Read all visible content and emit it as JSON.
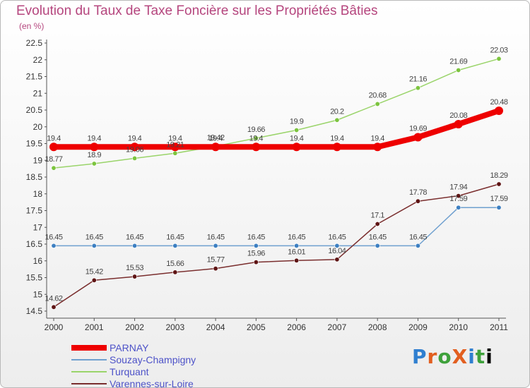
{
  "chart_data": {
    "type": "line",
    "title": "Evolution du Taux de Taxe Foncière sur les Propriétés Bâties",
    "ylabel": "(en %)",
    "xlabel": "",
    "x": [
      "2000",
      "2001",
      "2002",
      "2003",
      "2004",
      "2005",
      "2006",
      "2007",
      "2008",
      "2009",
      "2010",
      "2011"
    ],
    "ylim": [
      14.5,
      22.5
    ],
    "yticks": [
      "14.5",
      "15",
      "15.5",
      "16",
      "16.5",
      "17",
      "17.5",
      "18",
      "18.5",
      "19",
      "19.5",
      "20",
      "20.5",
      "21",
      "21.5",
      "22",
      "22.5"
    ],
    "grid": false,
    "legend_position": "bottom-left",
    "series": [
      {
        "name": "PARNAY",
        "color": "#ee0000",
        "values": [
          19.4,
          19.4,
          19.4,
          19.4,
          19.4,
          19.4,
          19.4,
          19.4,
          19.4,
          19.69,
          20.08,
          20.48
        ],
        "labels": [
          "19.4",
          "19.4",
          "19.4",
          "19.4",
          "19.4",
          "19.4",
          "19.4",
          "19.4",
          "19.4",
          "19.69",
          "20.08",
          "20.48"
        ]
      },
      {
        "name": "Souzay-Champigny",
        "color": "#6fa0cf",
        "values": [
          16.45,
          16.45,
          16.45,
          16.45,
          16.45,
          16.45,
          16.45,
          16.45,
          16.45,
          16.45,
          17.59,
          17.59
        ],
        "labels": [
          "16.45",
          "16.45",
          "16.45",
          "16.45",
          "16.45",
          "16.45",
          "16.45",
          "16.45",
          "16.45",
          "16.45",
          "17.59",
          "17.59"
        ]
      },
      {
        "name": "Turquant",
        "color": "#9ad46a",
        "values": [
          18.77,
          18.9,
          19.06,
          19.21,
          19.42,
          19.66,
          19.9,
          20.2,
          20.68,
          21.16,
          21.69,
          22.03
        ],
        "labels": [
          "18.77",
          "18.9",
          "19.06",
          "19.21",
          "19.42",
          "19.66",
          "19.9",
          "20.2",
          "20.68",
          "21.16",
          "21.69",
          "22.03"
        ]
      },
      {
        "name": "Varennes-sur-Loire",
        "color": "#7a2e2e",
        "values": [
          14.62,
          15.42,
          15.53,
          15.66,
          15.77,
          15.96,
          16.01,
          16.04,
          17.1,
          17.78,
          17.94,
          18.29
        ],
        "labels": [
          "14.62",
          "15.42",
          "15.53",
          "15.66",
          "15.77",
          "15.96",
          "16.01",
          "16.04",
          "17.1",
          "17.78",
          "17.94",
          "18.29"
        ]
      }
    ]
  },
  "logo": {
    "text": "ProXiti",
    "letters": [
      "P",
      "r",
      "o",
      "X",
      "i",
      "t",
      "i"
    ]
  }
}
